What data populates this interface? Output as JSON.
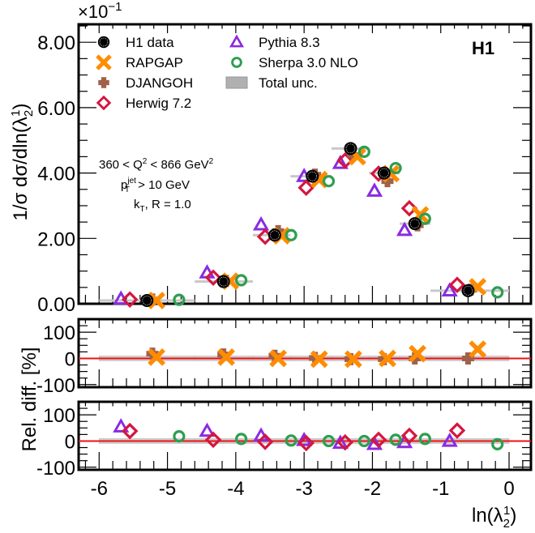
{
  "chart_data": {
    "type": "scatter",
    "experiment_label": "H1",
    "scale_label": "×10",
    "scale_exponent": "−1",
    "xlabel": "ln(λ",
    "xlabel_sup": "1",
    "xlabel_sub": "2",
    "xlabel_tail": ")",
    "xlim": [
      -6.3,
      0.32
    ],
    "xticks": [
      -6,
      -5,
      -4,
      -3,
      -2,
      -1,
      0
    ],
    "xtick_labels": [
      "-6",
      "-5",
      "-4",
      "-3",
      "-2",
      "-1",
      "0"
    ],
    "main": {
      "ylabel": "1/σ dσ/dln(λ",
      "ylabel_sup": "1",
      "ylabel_sub": "2",
      "ylabel_tail": ")",
      "ylim": [
        0,
        8.55
      ],
      "yticks": [
        0,
        2,
        4,
        6,
        8
      ],
      "ytick_labels": [
        "0.00",
        "2.00",
        "4.00",
        "6.00",
        "8.00"
      ],
      "annotation": {
        "line1": "360 < Q",
        "line1_sup": "2",
        "line1_mid": " < 866 GeV",
        "line1_sup2": "2",
        "line2_p": "p",
        "line2_sup": "jet",
        "line2_sub": "T",
        "line2_tail": " > 10 GeV",
        "line3_k": "k",
        "line3_sub": "T",
        "line3_tail": ", R = 1.0"
      },
      "bins": [
        [
          -6.0,
          -4.6
        ],
        [
          -4.6,
          -3.75
        ],
        [
          -3.75,
          -3.2
        ],
        [
          -3.2,
          -2.6
        ],
        [
          -2.6,
          -2.05
        ],
        [
          -2.05,
          -1.6
        ],
        [
          -1.6,
          -1.15
        ],
        [
          -1.15,
          0.0
        ]
      ],
      "series": [
        {
          "name": "H1 data",
          "marker": "dot",
          "color": "#000000",
          "x": [
            -5.3,
            -4.18,
            -3.43,
            -2.88,
            -2.32,
            -1.83,
            -1.38,
            -0.6
          ],
          "y": [
            0.1,
            0.68,
            2.1,
            3.9,
            4.75,
            4.0,
            2.45,
            0.4
          ]
        },
        {
          "name": "RAPGAP",
          "marker": "xcross",
          "color": "#ff8c00",
          "x": [
            -5.16,
            -4.08,
            -3.33,
            -2.78,
            -2.22,
            -1.73,
            -1.3,
            -0.46
          ],
          "y": [
            0.1,
            0.69,
            2.08,
            3.8,
            4.5,
            3.98,
            2.72,
            0.52
          ]
        },
        {
          "name": "DJANGOH",
          "marker": "plus",
          "color": "#a0614a",
          "x": [
            -5.22,
            -4.14,
            -3.38,
            -2.84,
            -2.28,
            -1.78,
            -1.34,
            -0.56
          ],
          "y": [
            0.13,
            0.7,
            2.22,
            3.95,
            4.55,
            3.75,
            2.4,
            0.43
          ]
        },
        {
          "name": "Herwig 7.2",
          "marker": "diamond",
          "color": "#d6163f",
          "x": [
            -5.55,
            -4.33,
            -3.57,
            -2.97,
            -2.4,
            -1.91,
            -1.46,
            -0.76
          ],
          "y": [
            0.13,
            0.8,
            2.05,
            3.55,
            4.38,
            3.98,
            2.92,
            0.58
          ]
        },
        {
          "name": "Pythia 8.3",
          "marker": "triangle",
          "color": "#8a2be2",
          "x": [
            -5.68,
            -4.42,
            -3.63,
            -3.0,
            -2.47,
            -1.97,
            -1.53,
            -0.87
          ],
          "y": [
            0.15,
            0.95,
            2.42,
            3.9,
            4.3,
            3.45,
            2.25,
            0.4
          ]
        },
        {
          "name": "Sherpa 3.0 NLO",
          "marker": "circle",
          "color": "#2e9e4f",
          "x": [
            -4.83,
            -3.92,
            -3.19,
            -2.64,
            -2.12,
            -1.66,
            -1.23,
            -0.17
          ],
          "y": [
            0.12,
            0.72,
            2.1,
            3.75,
            4.65,
            4.15,
            2.6,
            0.35
          ]
        }
      ]
    },
    "ratio1": {
      "ylabel": "Rel. diff. [%]",
      "ylim": [
        -110,
        150
      ],
      "yticks": [
        -100,
        0,
        100
      ],
      "ytick_labels": [
        "-100",
        "0",
        "100"
      ],
      "series": [
        {
          "name": "DJANGOH",
          "marker": "plus",
          "color": "#a0614a",
          "x": [
            -5.22,
            -4.18,
            -3.43,
            -2.84,
            -2.32,
            -1.83,
            -1.38,
            -0.6
          ],
          "y": [
            18,
            15,
            10,
            2,
            -3,
            -3,
            0,
            0
          ]
        },
        {
          "name": "RAPGAP",
          "marker": "xcross",
          "color": "#ff8c00",
          "x": [
            -5.16,
            -4.14,
            -3.38,
            -2.78,
            -2.28,
            -1.78,
            -1.34,
            -0.46
          ],
          "y": [
            5,
            5,
            0,
            -3,
            -3,
            0,
            18,
            35
          ]
        }
      ]
    },
    "ratio2": {
      "ylim": [
        -110,
        150
      ],
      "yticks": [
        -100,
        0,
        100
      ],
      "ytick_labels": [
        "-100",
        "0",
        "100"
      ],
      "series": [
        {
          "name": "Pythia 8.3",
          "marker": "triangle",
          "color": "#8a2be2",
          "x": [
            -5.68,
            -4.42,
            -3.63,
            -3.0,
            -2.47,
            -1.97,
            -1.53,
            -0.87
          ],
          "y": [
            55,
            38,
            20,
            3,
            -8,
            -12,
            -5,
            0
          ]
        },
        {
          "name": "Herwig 7.2",
          "marker": "diamond",
          "color": "#d6163f",
          "x": [
            -5.55,
            -4.33,
            -3.57,
            -2.97,
            -2.4,
            -1.91,
            -1.46,
            -0.76
          ],
          "y": [
            38,
            5,
            -3,
            -8,
            -5,
            5,
            20,
            40
          ]
        },
        {
          "name": "Sherpa 3.0 NLO",
          "marker": "circle",
          "color": "#2e9e4f",
          "x": [
            -4.83,
            -3.92,
            -3.19,
            -2.64,
            -2.12,
            -1.66,
            -1.23,
            -0.17
          ],
          "y": [
            18,
            8,
            2,
            0,
            0,
            5,
            8,
            -12
          ]
        }
      ]
    },
    "legend": {
      "placement": "top-left",
      "entries": [
        {
          "label": "H1 data",
          "marker": "dot",
          "color": "#000000"
        },
        {
          "label": "RAPGAP",
          "marker": "xcross",
          "color": "#ff8c00"
        },
        {
          "label": "DJANGOH",
          "marker": "plus",
          "color": "#a0614a"
        },
        {
          "label": "Herwig 7.2",
          "marker": "diamond",
          "color": "#d6163f"
        },
        {
          "label": "Pythia 8.3",
          "marker": "triangle",
          "color": "#8a2be2"
        },
        {
          "label": "Sherpa 3.0 NLO",
          "marker": "circle",
          "color": "#2e9e4f"
        },
        {
          "label": "Total unc.",
          "marker": "band",
          "color": "#b0b0b0"
        }
      ]
    },
    "reference_line_color": "#ee1111"
  }
}
